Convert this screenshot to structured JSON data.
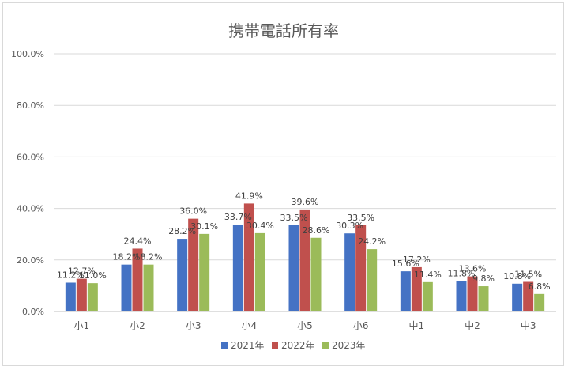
{
  "chart_data": {
    "type": "bar",
    "title": "携帯電話所有率",
    "xlabel": "",
    "ylabel": "",
    "ylim": [
      0,
      100
    ],
    "yticks": [
      "0.0%",
      "20.0%",
      "40.0%",
      "60.0%",
      "80.0%",
      "100.0%"
    ],
    "ytick_values": [
      0,
      20,
      40,
      60,
      80,
      100
    ],
    "categories": [
      "小1",
      "小2",
      "小3",
      "小4",
      "小5",
      "小6",
      "中1",
      "中2",
      "中3"
    ],
    "series": [
      {
        "name": "2021年",
        "color": "#4472C4",
        "values": [
          11.2,
          18.2,
          28.2,
          33.7,
          33.5,
          30.3,
          15.6,
          11.8,
          10.8
        ],
        "labels": [
          "11.2%",
          "18.2%",
          "28.2%",
          "33.7%",
          "33.5%",
          "30.3%",
          "15.6%",
          "11.8%",
          "10.8%"
        ]
      },
      {
        "name": "2022年",
        "color": "#C0504D",
        "values": [
          12.7,
          24.4,
          36.0,
          41.9,
          39.6,
          33.5,
          17.2,
          13.6,
          11.5
        ],
        "labels": [
          "12.7%",
          "24.4%",
          "36.0%",
          "41.9%",
          "39.6%",
          "33.5%",
          "17.2%",
          "13.6%",
          "11.5%"
        ]
      },
      {
        "name": "2023年",
        "color": "#9BBB59",
        "values": [
          11.0,
          18.2,
          30.1,
          30.4,
          28.6,
          24.2,
          11.4,
          9.8,
          6.8
        ],
        "labels": [
          "11.0%",
          "18.2%",
          "30.1%",
          "30.4%",
          "28.6%",
          "24.2%",
          "11.4%",
          "9.8%",
          "6.8%"
        ]
      }
    ],
    "grid": true,
    "legend": "bottom"
  }
}
